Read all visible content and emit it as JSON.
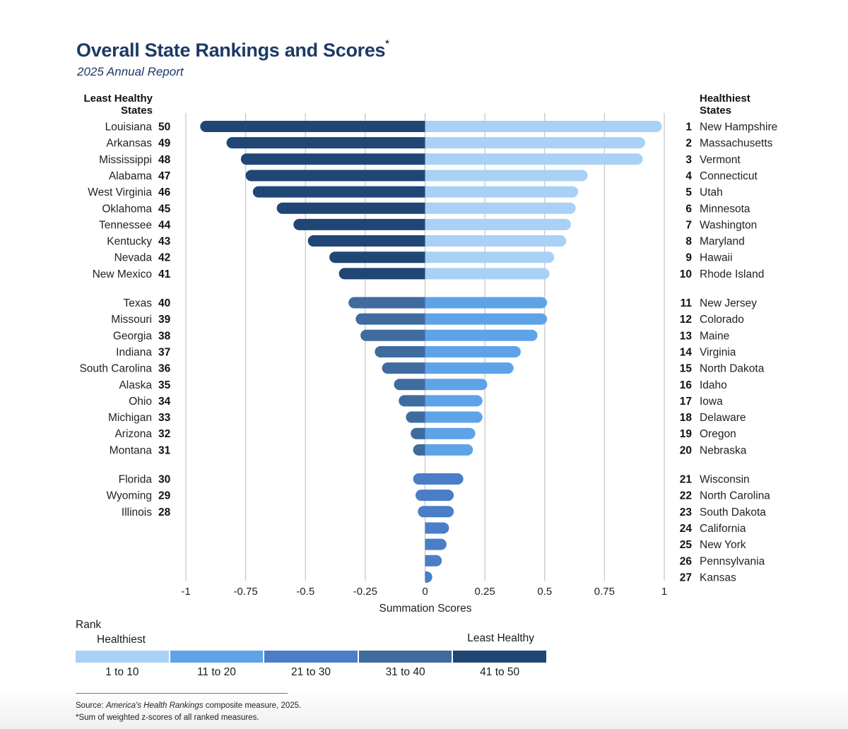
{
  "header": {
    "title": "Overall State Rankings and Scores",
    "title_mark": "*",
    "subtitle": "2025 Annual Report",
    "left_heading_line1": "Least Healthy",
    "left_heading_line2": "States",
    "right_heading_line1": "Healthiest",
    "right_heading_line2": "States",
    "top_marks": [
      "”",
      "”"
    ]
  },
  "legend": {
    "title": "Rank",
    "healthiest_label": "Healthiest",
    "least_healthy_label": "Least Healthy",
    "bins": [
      {
        "label": "1 to 10",
        "color": "#a9d1f5"
      },
      {
        "label": "11 to 20",
        "color": "#5ea3e8"
      },
      {
        "label": "21 to 30",
        "color": "#4a7ec6"
      },
      {
        "label": "31 to 40",
        "color": "#3f6b9e"
      },
      {
        "label": "41 to 50",
        "color": "#1f4675"
      }
    ]
  },
  "footer": {
    "source_prefix": "Source: ",
    "source_italic": "America's Health Rankings",
    "source_suffix": " composite measure, 2025.",
    "note": "*Sum of weighted z-scores of all ranked measures."
  },
  "chart_data": {
    "type": "bar",
    "orientation": "horizontal-diverging",
    "title": "Overall State Rankings and Scores*",
    "subtitle": "2025 Annual Report",
    "xlabel": "Summation Scores",
    "ylabel": "",
    "xlim": [
      -1,
      1
    ],
    "x_ticks": [
      -1,
      -0.75,
      -0.5,
      -0.25,
      0,
      0.25,
      0.5,
      0.75,
      1
    ],
    "x_tick_labels": [
      "-1",
      "-0.75",
      "-0.5",
      "-0.25",
      "0",
      "0.25",
      "0.5",
      "0.75",
      "1"
    ],
    "grid": "vertical",
    "legend_position": "bottom-left",
    "color_bins": [
      {
        "range": [
          1,
          10
        ],
        "color": "#a9d1f5"
      },
      {
        "range": [
          11,
          20
        ],
        "color": "#5ea3e8"
      },
      {
        "range": [
          21,
          30
        ],
        "color": "#4a7ec6"
      },
      {
        "range": [
          31,
          40
        ],
        "color": "#3f6b9e"
      },
      {
        "range": [
          41,
          50
        ],
        "color": "#1f4675"
      }
    ],
    "groups": [
      {
        "least_healthy": [
          {
            "state": "Louisiana",
            "rank": 50,
            "score": -0.94
          },
          {
            "state": "Arkansas",
            "rank": 49,
            "score": -0.83
          },
          {
            "state": "Mississippi",
            "rank": 48,
            "score": -0.77
          },
          {
            "state": "Alabama",
            "rank": 47,
            "score": -0.75
          },
          {
            "state": "West Virginia",
            "rank": 46,
            "score": -0.72
          },
          {
            "state": "Oklahoma",
            "rank": 45,
            "score": -0.62
          },
          {
            "state": "Tennessee",
            "rank": 44,
            "score": -0.55
          },
          {
            "state": "Kentucky",
            "rank": 43,
            "score": -0.49
          },
          {
            "state": "Nevada",
            "rank": 42,
            "score": -0.4
          },
          {
            "state": "New Mexico",
            "rank": 41,
            "score": -0.36
          }
        ],
        "healthiest": [
          {
            "state": "New Hampshire",
            "rank": 1,
            "score": 0.99
          },
          {
            "state": "Massachusetts",
            "rank": 2,
            "score": 0.92
          },
          {
            "state": "Vermont",
            "rank": 3,
            "score": 0.91
          },
          {
            "state": "Connecticut",
            "rank": 4,
            "score": 0.68
          },
          {
            "state": "Utah",
            "rank": 5,
            "score": 0.64
          },
          {
            "state": "Minnesota",
            "rank": 6,
            "score": 0.63
          },
          {
            "state": "Washington",
            "rank": 7,
            "score": 0.61
          },
          {
            "state": "Maryland",
            "rank": 8,
            "score": 0.59
          },
          {
            "state": "Hawaii",
            "rank": 9,
            "score": 0.54
          },
          {
            "state": "Rhode Island",
            "rank": 10,
            "score": 0.52
          }
        ]
      },
      {
        "least_healthy": [
          {
            "state": "Texas",
            "rank": 40,
            "score": -0.32
          },
          {
            "state": "Missouri",
            "rank": 39,
            "score": -0.29
          },
          {
            "state": "Georgia",
            "rank": 38,
            "score": -0.27
          },
          {
            "state": "Indiana",
            "rank": 37,
            "score": -0.21
          },
          {
            "state": "South Carolina",
            "rank": 36,
            "score": -0.18
          },
          {
            "state": "Alaska",
            "rank": 35,
            "score": -0.13
          },
          {
            "state": "Ohio",
            "rank": 34,
            "score": -0.11
          },
          {
            "state": "Michigan",
            "rank": 33,
            "score": -0.08
          },
          {
            "state": "Arizona",
            "rank": 32,
            "score": -0.06
          },
          {
            "state": "Montana",
            "rank": 31,
            "score": -0.05
          }
        ],
        "healthiest": [
          {
            "state": "New Jersey",
            "rank": 11,
            "score": 0.51
          },
          {
            "state": "Colorado",
            "rank": 12,
            "score": 0.51
          },
          {
            "state": "Maine",
            "rank": 13,
            "score": 0.47
          },
          {
            "state": "Virginia",
            "rank": 14,
            "score": 0.4
          },
          {
            "state": "North Dakota",
            "rank": 15,
            "score": 0.37
          },
          {
            "state": "Idaho",
            "rank": 16,
            "score": 0.26
          },
          {
            "state": "Iowa",
            "rank": 17,
            "score": 0.24
          },
          {
            "state": "Delaware",
            "rank": 18,
            "score": 0.24
          },
          {
            "state": "Oregon",
            "rank": 19,
            "score": 0.21
          },
          {
            "state": "Nebraska",
            "rank": 20,
            "score": 0.2
          }
        ]
      },
      {
        "least_healthy": [
          {
            "state": "Florida",
            "rank": 30,
            "score": -0.05
          },
          {
            "state": "Wyoming",
            "rank": 29,
            "score": -0.04
          },
          {
            "state": "Illinois",
            "rank": 28,
            "score": -0.03
          }
        ],
        "healthiest": [
          {
            "state": "Wisconsin",
            "rank": 21,
            "score": 0.16
          },
          {
            "state": "North Carolina",
            "rank": 22,
            "score": 0.12
          },
          {
            "state": "South Dakota",
            "rank": 23,
            "score": 0.12
          },
          {
            "state": "California",
            "rank": 24,
            "score": 0.1
          },
          {
            "state": "New York",
            "rank": 25,
            "score": 0.09
          },
          {
            "state": "Pennsylvania",
            "rank": 26,
            "score": 0.07
          },
          {
            "state": "Kansas",
            "rank": 27,
            "score": 0.03
          }
        ]
      }
    ]
  }
}
